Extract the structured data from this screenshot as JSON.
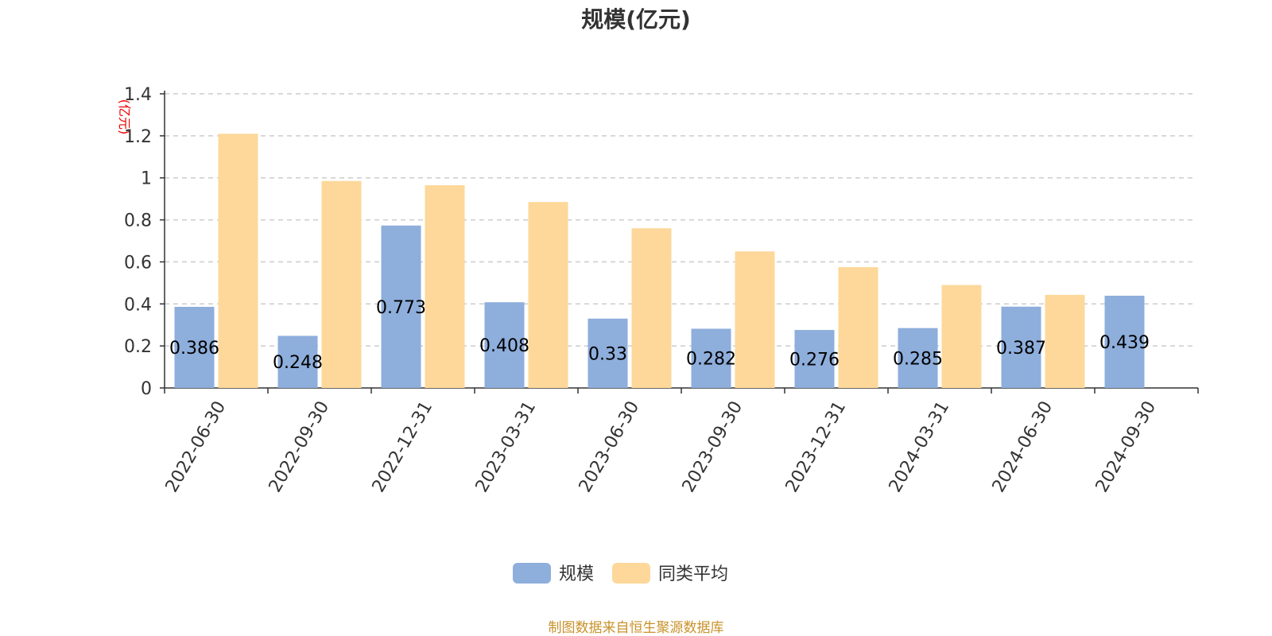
{
  "chart_data": {
    "type": "bar",
    "title": "规模(亿元)",
    "unit_label": "(亿元)",
    "categories": [
      "2022-06-30",
      "2022-09-30",
      "2022-12-31",
      "2023-03-31",
      "2023-06-30",
      "2023-09-30",
      "2023-12-31",
      "2024-03-31",
      "2024-06-30",
      "2024-09-30"
    ],
    "series": [
      {
        "name": "规模",
        "color": "#8eaedc",
        "values": [
          0.386,
          0.248,
          0.773,
          0.408,
          0.33,
          0.282,
          0.276,
          0.285,
          0.387,
          0.439
        ],
        "labels": [
          "0.386",
          "0.248",
          "0.773",
          "0.408",
          "0.33",
          "0.282",
          "0.276",
          "0.285",
          "0.387",
          "0.439"
        ]
      },
      {
        "name": "同类平均",
        "color": "#fdd89a",
        "values": [
          1.21,
          0.985,
          0.965,
          0.885,
          0.76,
          0.65,
          0.575,
          0.49,
          0.443,
          null
        ]
      }
    ],
    "yticks": [
      "0",
      "0.2",
      "0.4",
      "0.6",
      "0.8",
      "1",
      "1.2",
      "1.4"
    ],
    "ylim": [
      0,
      1.4
    ],
    "grid": true,
    "legend_position": "bottom-center"
  },
  "footer": {
    "source": "制图数据来自恒生聚源数据库"
  }
}
